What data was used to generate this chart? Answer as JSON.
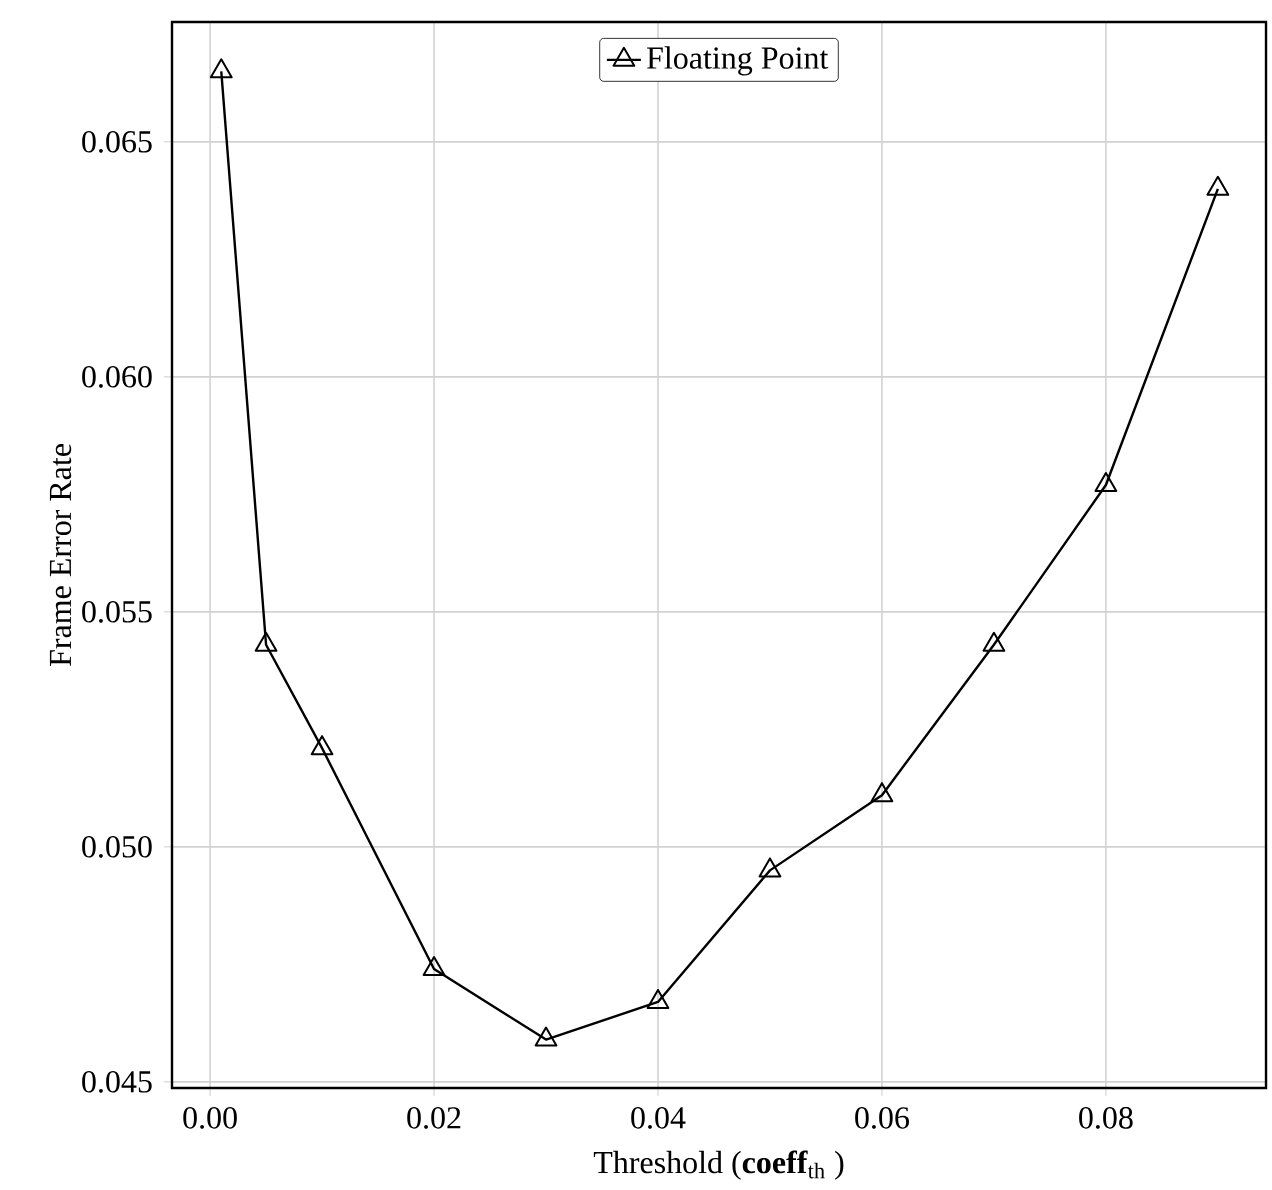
{
  "chart_data": {
    "type": "line",
    "xlabel": "Threshold (**coeff**$_{th}$ )",
    "ylabel": "Frame Error Rate",
    "x": [
      0.001,
      0.005,
      0.01,
      0.02,
      0.03,
      0.04,
      0.05,
      0.06,
      0.07,
      0.08,
      0.09
    ],
    "series": [
      {
        "name": "Floating Point",
        "color": "#000000",
        "values": [
          0.0665,
          0.0543,
          0.0521,
          0.0474,
          0.0459,
          0.0467,
          0.0495,
          0.0511,
          0.0543,
          0.0577,
          0.064
        ]
      }
    ],
    "xlim": [
      -0.0034,
      0.0943
    ],
    "ylim": [
      0.04487,
      0.06755
    ],
    "xticks": [
      {
        "value": 0,
        "label": "0.00"
      },
      0.02,
      0.04,
      0.06,
      0.08
    ],
    "yticks": [
      0.045,
      {
        "value": 0.05,
        "label": "0.050"
      },
      0.055,
      {
        "value": 0.06,
        "label": "0.060"
      },
      0.065
    ],
    "grid": true,
    "legend": "top",
    "marker": "triangle",
    "line_style": "solid"
  }
}
